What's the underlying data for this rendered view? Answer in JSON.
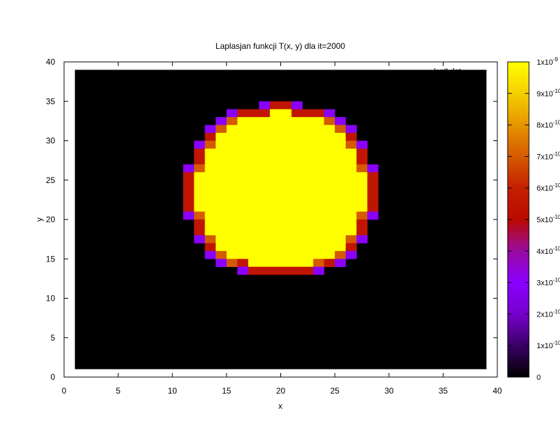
{
  "chart_data": {
    "type": "heatmap",
    "title": "Laplasjan funkcji T(x, y) dla it=2000",
    "xlabel": "x",
    "ylabel": "y",
    "xlim": [
      0,
      40
    ],
    "ylim": [
      0,
      40
    ],
    "x_ticks": [
      "0",
      "5",
      "10",
      "15",
      "20",
      "25",
      "30",
      "35",
      "40"
    ],
    "y_ticks": [
      "0",
      "5",
      "10",
      "15",
      "20",
      "25",
      "30",
      "35",
      "40"
    ],
    "legend_text": "lap2.dat",
    "grid": false,
    "data_extent": {
      "x": [
        1,
        39
      ],
      "y": [
        1,
        39
      ]
    },
    "cell_size": 1,
    "background_value": 0,
    "colorbar": {
      "range": [
        0,
        1e-09
      ],
      "tick_labels": [
        "0",
        "1x10-10",
        "2x10-10",
        "3x10-10",
        "4x10-10",
        "5x10-10",
        "6x10-10",
        "7x10-10",
        "8x10-10",
        "9x10-10",
        "1x10-9"
      ],
      "palette": [
        "#000000",
        "#3a0066",
        "#7700cc",
        "#8a00ff",
        "#9a0aa0",
        "#bb0a00",
        "#c42000",
        "#d55a00",
        "#e69500",
        "#f5cf00",
        "#ffff00"
      ]
    },
    "rows": [
      {
        "y": 34,
        "segments": [
          {
            "x": [
              18,
              19
            ],
            "value": 3e-10
          },
          {
            "x": [
              19,
              21
            ],
            "value": 5.5e-10
          },
          {
            "x": [
              21,
              22
            ],
            "value": 3e-10
          }
        ]
      },
      {
        "y": 33,
        "segments": [
          {
            "x": [
              15,
              16
            ],
            "value": 3e-10
          },
          {
            "x": [
              16,
              19
            ],
            "value": 5.5e-10
          },
          {
            "x": [
              19,
              21
            ],
            "value": 1e-09
          },
          {
            "x": [
              21,
              24
            ],
            "value": 5.5e-10
          },
          {
            "x": [
              24,
              25
            ],
            "value": 3e-10
          }
        ]
      },
      {
        "y": 32,
        "segments": [
          {
            "x": [
              14,
              15
            ],
            "value": 3e-10
          },
          {
            "x": [
              15,
              16
            ],
            "value": 7e-10
          },
          {
            "x": [
              16,
              24
            ],
            "value": 1e-09
          },
          {
            "x": [
              24,
              25
            ],
            "value": 7e-10
          },
          {
            "x": [
              25,
              26
            ],
            "value": 3e-10
          }
        ]
      },
      {
        "y": 31,
        "segments": [
          {
            "x": [
              13,
              14
            ],
            "value": 3e-10
          },
          {
            "x": [
              14,
              15
            ],
            "value": 7e-10
          },
          {
            "x": [
              15,
              25
            ],
            "value": 1e-09
          },
          {
            "x": [
              25,
              26
            ],
            "value": 7e-10
          },
          {
            "x": [
              26,
              27
            ],
            "value": 3e-10
          }
        ]
      },
      {
        "y": 30,
        "segments": [
          {
            "x": [
              13,
              14
            ],
            "value": 5.5e-10
          },
          {
            "x": [
              14,
              26
            ],
            "value": 1e-09
          },
          {
            "x": [
              26,
              27
            ],
            "value": 5.5e-10
          }
        ]
      },
      {
        "y": 29,
        "segments": [
          {
            "x": [
              12,
              13
            ],
            "value": 3e-10
          },
          {
            "x": [
              13,
              14
            ],
            "value": 7e-10
          },
          {
            "x": [
              14,
              26
            ],
            "value": 1e-09
          },
          {
            "x": [
              26,
              27
            ],
            "value": 7e-10
          },
          {
            "x": [
              27,
              28
            ],
            "value": 3e-10
          }
        ]
      },
      {
        "y": 28,
        "segments": [
          {
            "x": [
              12,
              13
            ],
            "value": 5.5e-10
          },
          {
            "x": [
              13,
              27
            ],
            "value": 1e-09
          },
          {
            "x": [
              27,
              28
            ],
            "value": 5.5e-10
          }
        ]
      },
      {
        "y": 27,
        "segments": [
          {
            "x": [
              12,
              13
            ],
            "value": 5.5e-10
          },
          {
            "x": [
              13,
              27
            ],
            "value": 1e-09
          },
          {
            "x": [
              27,
              28
            ],
            "value": 5.5e-10
          }
        ]
      },
      {
        "y": 26,
        "segments": [
          {
            "x": [
              11,
              12
            ],
            "value": 3e-10
          },
          {
            "x": [
              12,
              13
            ],
            "value": 7e-10
          },
          {
            "x": [
              13,
              27
            ],
            "value": 1e-09
          },
          {
            "x": [
              27,
              28
            ],
            "value": 7e-10
          },
          {
            "x": [
              28,
              29
            ],
            "value": 3e-10
          }
        ]
      },
      {
        "y": 25,
        "segments": [
          {
            "x": [
              11,
              12
            ],
            "value": 5.5e-10
          },
          {
            "x": [
              12,
              28
            ],
            "value": 1e-09
          },
          {
            "x": [
              28,
              29
            ],
            "value": 5.5e-10
          }
        ]
      },
      {
        "y": 24,
        "segments": [
          {
            "x": [
              11,
              12
            ],
            "value": 5.5e-10
          },
          {
            "x": [
              12,
              28
            ],
            "value": 1e-09
          },
          {
            "x": [
              28,
              29
            ],
            "value": 5.5e-10
          }
        ]
      },
      {
        "y": 23,
        "segments": [
          {
            "x": [
              11,
              12
            ],
            "value": 5.5e-10
          },
          {
            "x": [
              12,
              28
            ],
            "value": 1e-09
          },
          {
            "x": [
              28,
              29
            ],
            "value": 5.5e-10
          }
        ]
      },
      {
        "y": 22,
        "segments": [
          {
            "x": [
              11,
              12
            ],
            "value": 5.5e-10
          },
          {
            "x": [
              12,
              28
            ],
            "value": 1e-09
          },
          {
            "x": [
              28,
              29
            ],
            "value": 5.5e-10
          }
        ]
      },
      {
        "y": 21,
        "segments": [
          {
            "x": [
              11,
              12
            ],
            "value": 5.5e-10
          },
          {
            "x": [
              12,
              28
            ],
            "value": 1e-09
          },
          {
            "x": [
              28,
              29
            ],
            "value": 5.5e-10
          }
        ]
      },
      {
        "y": 20,
        "segments": [
          {
            "x": [
              11,
              12
            ],
            "value": 3e-10
          },
          {
            "x": [
              12,
              13
            ],
            "value": 7e-10
          },
          {
            "x": [
              13,
              27
            ],
            "value": 1e-09
          },
          {
            "x": [
              27,
              28
            ],
            "value": 7e-10
          },
          {
            "x": [
              28,
              29
            ],
            "value": 3e-10
          }
        ]
      },
      {
        "y": 19,
        "segments": [
          {
            "x": [
              12,
              13
            ],
            "value": 5.5e-10
          },
          {
            "x": [
              13,
              27
            ],
            "value": 1e-09
          },
          {
            "x": [
              27,
              28
            ],
            "value": 5.5e-10
          }
        ]
      },
      {
        "y": 18,
        "segments": [
          {
            "x": [
              12,
              13
            ],
            "value": 5.5e-10
          },
          {
            "x": [
              13,
              27
            ],
            "value": 1e-09
          },
          {
            "x": [
              27,
              28
            ],
            "value": 5.5e-10
          }
        ]
      },
      {
        "y": 17,
        "segments": [
          {
            "x": [
              12,
              13
            ],
            "value": 3e-10
          },
          {
            "x": [
              13,
              14
            ],
            "value": 7e-10
          },
          {
            "x": [
              14,
              26
            ],
            "value": 1e-09
          },
          {
            "x": [
              26,
              27
            ],
            "value": 7e-10
          },
          {
            "x": [
              27,
              28
            ],
            "value": 3e-10
          }
        ]
      },
      {
        "y": 16,
        "segments": [
          {
            "x": [
              13,
              14
            ],
            "value": 5.5e-10
          },
          {
            "x": [
              14,
              26
            ],
            "value": 1e-09
          },
          {
            "x": [
              26,
              27
            ],
            "value": 5.5e-10
          }
        ]
      },
      {
        "y": 15,
        "segments": [
          {
            "x": [
              13,
              14
            ],
            "value": 3e-10
          },
          {
            "x": [
              14,
              15
            ],
            "value": 7e-10
          },
          {
            "x": [
              15,
              25
            ],
            "value": 1e-09
          },
          {
            "x": [
              25,
              26
            ],
            "value": 7e-10
          },
          {
            "x": [
              26,
              27
            ],
            "value": 3e-10
          }
        ]
      },
      {
        "y": 14,
        "segments": [
          {
            "x": [
              14,
              15
            ],
            "value": 3e-10
          },
          {
            "x": [
              15,
              16
            ],
            "value": 7e-10
          },
          {
            "x": [
              16,
              17
            ],
            "value": 5.5e-10
          },
          {
            "x": [
              17,
              23
            ],
            "value": 1e-09
          },
          {
            "x": [
              23,
              24
            ],
            "value": 7e-10
          },
          {
            "x": [
              24,
              25
            ],
            "value": 5.5e-10
          },
          {
            "x": [
              25,
              26
            ],
            "value": 3e-10
          }
        ]
      },
      {
        "y": 13,
        "segments": [
          {
            "x": [
              16,
              17
            ],
            "value": 3e-10
          },
          {
            "x": [
              17,
              23
            ],
            "value": 5.5e-10
          },
          {
            "x": [
              23,
              24
            ],
            "value": 3e-10
          }
        ]
      }
    ]
  }
}
